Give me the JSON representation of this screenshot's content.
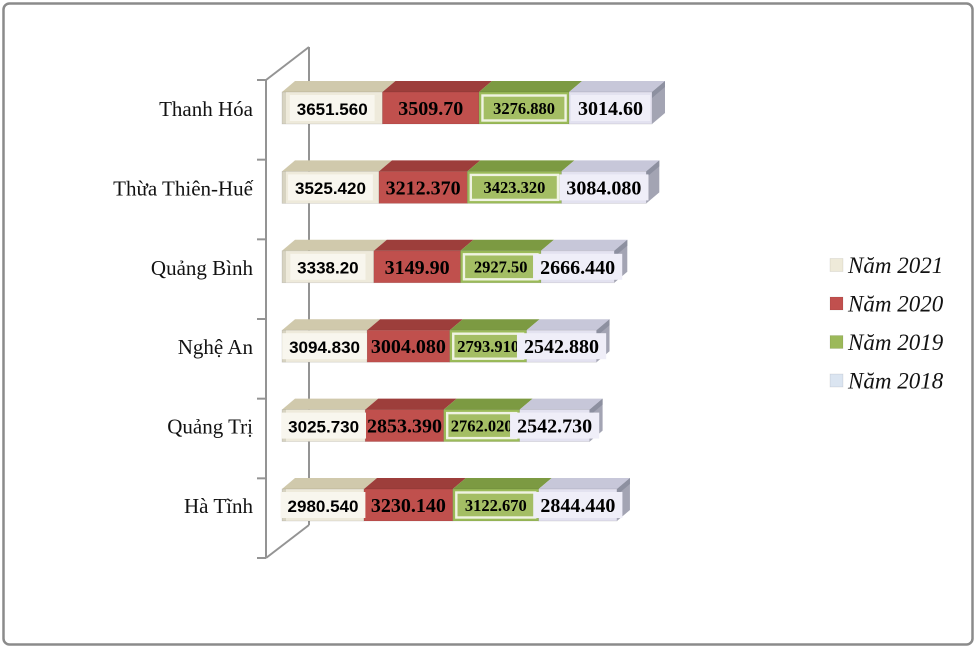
{
  "figure": {
    "background": "#ffffff",
    "border_color": "#8b8b8b",
    "axis_color": "#949494"
  },
  "chart_data": {
    "type": "bar",
    "subtype": "horizontal-stacked-3d",
    "title": "",
    "xlabel": "",
    "ylabel": "",
    "grid": false,
    "value_axis_visible": false,
    "legend_position": "right",
    "categories": [
      "Thanh Hóa",
      "Thừa Thiên-Huế",
      "Quảng Bình",
      "Nghệ An",
      "Quảng Trị",
      "Hà Tĩnh"
    ],
    "series": [
      {
        "name": "Năm 2021",
        "color": "#eeeadb",
        "top_color": "#d0c9ac",
        "legend_color": "#eeead9",
        "label_box_color": "#f8f6ee",
        "values": [
          3651.56,
          3525.42,
          3338.2,
          3094.83,
          3025.73,
          2980.54
        ],
        "labels": [
          "3651.560",
          "3525.420",
          "3338.20",
          "3094.830",
          "3025.730",
          "2980.540"
        ]
      },
      {
        "name": "Năm 2020",
        "color": "#c0504d",
        "top_color": "#9d3e3b",
        "legend_color": "#c1504e",
        "values": [
          3509.7,
          3212.37,
          3149.9,
          3004.08,
          2853.39,
          3230.14
        ],
        "labels": [
          "3509.70",
          "3212.370",
          "3149.90",
          "3004.080",
          "2853.390",
          "3230.140"
        ]
      },
      {
        "name": "Năm 2019",
        "color": "#9bbb59",
        "top_color": "#7c9a42",
        "label_box_color": "#a4be64",
        "label_box_border": "#f0f3e2",
        "legend_color": "#9cb95a",
        "values": [
          3276.88,
          3423.32,
          2927.5,
          2793.91,
          2762.02,
          3122.67
        ],
        "labels": [
          "3276.880",
          "3423.320",
          "2927.50",
          "2793.910",
          "2762.020",
          "3122.670"
        ]
      },
      {
        "name": "Năm 2018",
        "color": "#e3e2f0",
        "top_color": "#c7c7d9",
        "label_box_color": "#efeef8",
        "legend_color": "#dbe5f1",
        "values": [
          3014.6,
          3084.08,
          2666.44,
          2542.88,
          2542.73,
          2844.44
        ],
        "labels": [
          "3014.60",
          "3084.080",
          "2666.440",
          "2542.880",
          "2542.730",
          "2844.440"
        ]
      }
    ],
    "end_cap_color": "#a3a4b3",
    "end_cap_corner_color": "#8d90a0"
  }
}
